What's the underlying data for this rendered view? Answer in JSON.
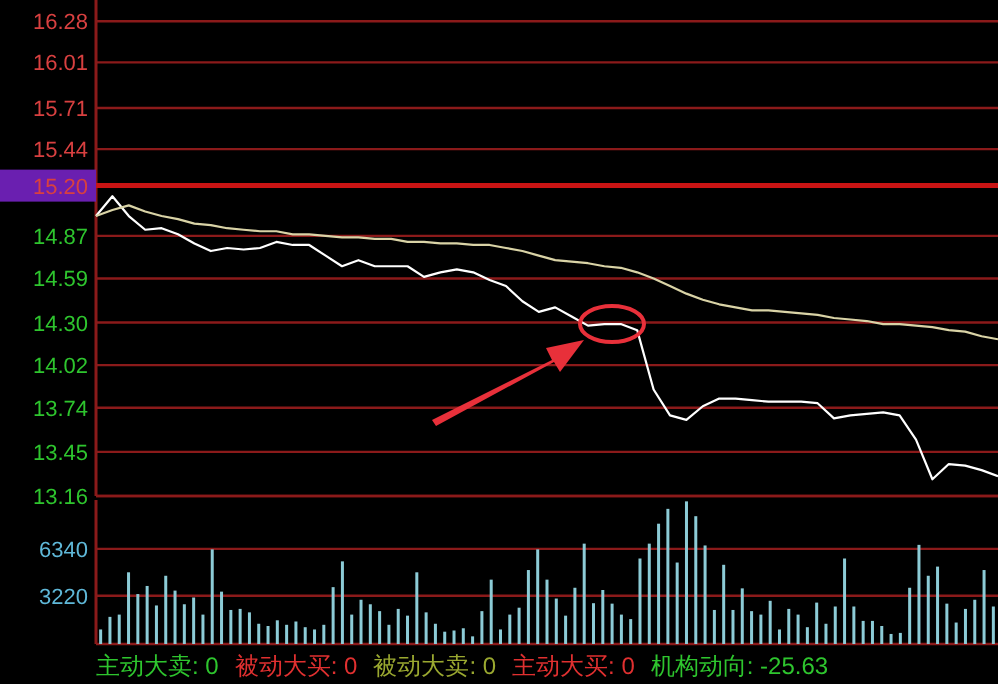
{
  "chart_data": [
    {
      "type": "line",
      "categories": [
        null,
        null,
        null,
        null,
        null,
        null,
        null,
        null,
        null,
        null,
        null,
        null,
        null,
        null,
        null,
        null,
        null,
        null,
        null,
        null,
        null,
        null,
        null,
        null,
        null,
        null,
        null,
        null,
        null,
        null,
        null,
        null,
        null,
        null,
        null,
        null,
        null,
        null,
        null,
        null,
        null,
        null,
        null,
        null,
        null,
        null,
        null,
        null,
        null,
        null,
        null,
        null,
        null,
        null,
        null,
        null
      ],
      "ylim": [
        13.16,
        16.42
      ],
      "yticks": [
        13.16,
        13.45,
        13.74,
        14.02,
        {
          "value": 14.3,
          "label": "14.30"
        },
        14.59,
        14.87,
        15.44,
        15.71,
        16.01,
        16.28
      ],
      "grid": "y",
      "ref_lines": [
        {
          "axis": "y",
          "value": 15.2,
          "label": "15.20",
          "color": "#c81414"
        }
      ],
      "series": [
        {
          "color": "#ffffff",
          "values": [
            15.0,
            15.13,
            15.0,
            14.91,
            14.92,
            14.88,
            14.82,
            14.77,
            14.79,
            14.78,
            14.79,
            14.83,
            14.81,
            14.81,
            14.74,
            14.67,
            14.71,
            14.67,
            14.67,
            14.67,
            14.6,
            14.63,
            14.65,
            14.63,
            14.58,
            14.54,
            14.44,
            14.37,
            14.4,
            14.34,
            14.28,
            14.29,
            14.29,
            14.25,
            13.86,
            13.69,
            13.66,
            13.75,
            13.8,
            13.8,
            13.79,
            13.78,
            13.78,
            13.78,
            13.77,
            13.67,
            13.69,
            13.7,
            13.71,
            13.69,
            13.53,
            13.27,
            13.37,
            13.36,
            13.33,
            13.29
          ]
        },
        {
          "color": "#d9d3a6",
          "values": [
            15.0,
            15.04,
            15.07,
            15.03,
            15.0,
            14.98,
            14.95,
            14.94,
            14.92,
            14.91,
            14.9,
            14.9,
            14.88,
            14.88,
            14.87,
            14.86,
            14.86,
            14.85,
            14.85,
            14.83,
            14.83,
            14.82,
            14.82,
            14.81,
            14.81,
            14.79,
            14.77,
            14.74,
            14.71,
            14.7,
            14.69,
            14.67,
            14.66,
            14.63,
            14.59,
            14.54,
            14.49,
            14.45,
            14.42,
            14.4,
            14.38,
            14.38,
            14.37,
            14.36,
            14.35,
            14.33,
            14.32,
            14.31,
            14.29,
            14.29,
            14.28,
            14.27,
            14.25,
            14.24,
            14.21,
            14.19
          ]
        }
      ]
    },
    {
      "type": "bar",
      "categories": [
        null,
        null,
        null,
        null,
        null,
        null,
        null,
        null,
        null,
        null,
        null,
        null,
        null,
        null,
        null,
        null,
        null,
        null,
        null,
        null,
        null,
        null,
        null,
        null,
        null,
        null,
        null,
        null,
        null,
        null,
        null,
        null,
        null,
        null,
        null,
        null,
        null,
        null,
        null,
        null,
        null,
        null,
        null,
        null,
        null,
        null,
        null,
        null,
        null,
        null,
        null,
        null,
        null,
        null,
        null,
        null,
        null,
        null,
        null,
        null,
        null,
        null,
        null,
        null,
        null,
        null,
        null,
        null,
        null,
        null,
        null,
        null,
        null,
        null,
        null,
        null,
        null,
        null,
        null,
        null,
        null,
        null,
        null,
        null,
        null,
        null,
        null,
        null,
        null,
        null,
        null,
        null,
        null,
        null,
        null,
        null,
        null
      ],
      "color": "#8ccbd6",
      "ylim": [
        0,
        9600
      ],
      "yticks": [
        3220,
        6340
      ],
      "grid": "y",
      "values": [
        970,
        1810,
        1960,
        4780,
        3330,
        3870,
        2570,
        4550,
        3560,
        2650,
        3100,
        1960,
        6310,
        3490,
        2270,
        2340,
        2110,
        1350,
        1200,
        1580,
        1280,
        1500,
        1120,
        970,
        1280,
        3790,
        5510,
        1960,
        2950,
        2650,
        2190,
        1280,
        2340,
        1890,
        4780,
        2110,
        1350,
        820,
        900,
        1050,
        510,
        2190,
        4290,
        970,
        1960,
        2420,
        4930,
        6310,
        4290,
        3030,
        1890,
        3750,
        6690,
        2720,
        3600,
        2690,
        1960,
        1660,
        5700,
        6690,
        8020,
        9010,
        5430,
        9510,
        8520,
        6570,
        2270,
        5280,
        2270,
        3710,
        2190,
        1960,
        2880,
        970,
        2340,
        1960,
        1120,
        2760,
        1350,
        2500,
        5700,
        2500,
        1540,
        1540,
        1200,
        670,
        740,
        3750,
        6610,
        4550,
        5160,
        2690,
        1430,
        2340,
        2950,
        4930,
        2500
      ],
      "annotations": [
        "主动大卖: 0",
        "被动大买: 0",
        "被动大卖: 0",
        "主动大买: 0",
        "机构动向: -25.63"
      ]
    }
  ]
}
